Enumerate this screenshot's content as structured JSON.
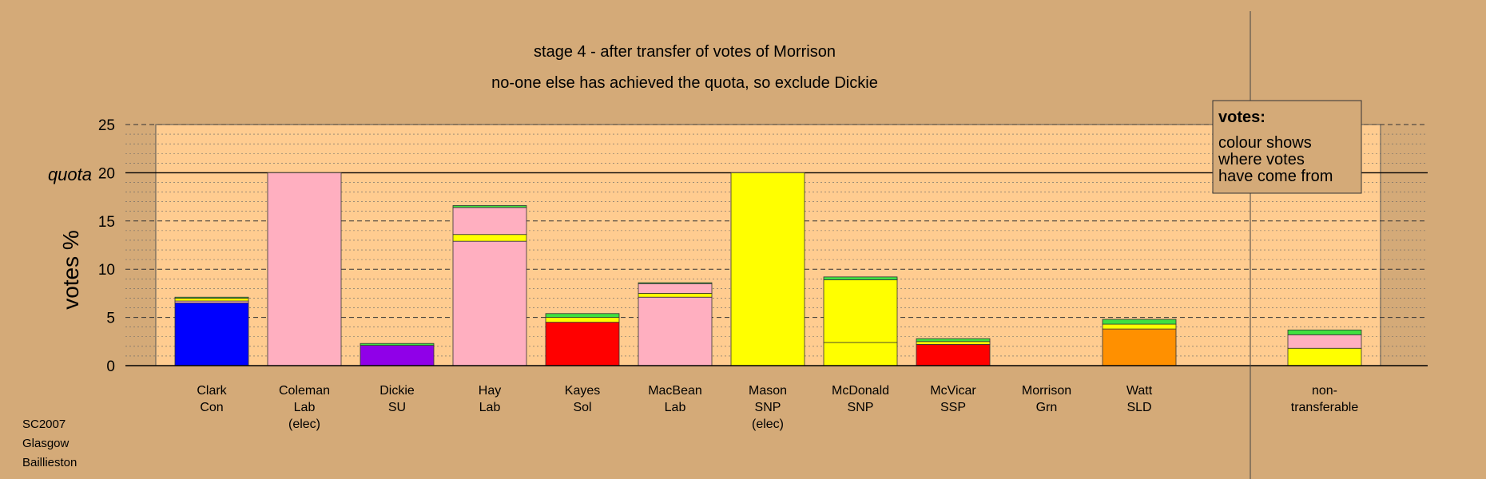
{
  "chart_data": {
    "type": "bar",
    "stacked": true,
    "title": "stage 4 - after transfer of votes of Morrison",
    "subtitle": "no-one else has achieved the quota, so exclude Dickie",
    "ylabel": "votes %",
    "ylim": [
      0,
      25
    ],
    "yticks": [
      0,
      5,
      10,
      15,
      20,
      25
    ],
    "quota": 20,
    "quota_label": "quota",
    "grid": true,
    "source_note": [
      "SC2007",
      "Glasgow",
      "Baillieston"
    ],
    "legend": {
      "title": "votes:",
      "lines": [
        "colour shows",
        "where votes",
        "have come from"
      ],
      "placement": "top-right"
    },
    "colors": {
      "background": "#d4aa78",
      "plot_area": "#ffcc90",
      "Con": "#0000ff",
      "Lab": "#ffafc0",
      "SU": "#9000e8",
      "Sol": "#ff0000",
      "SNP": "#ffff00",
      "SSP": "#ff0000",
      "Grn": "#40e040",
      "SLD": "#ff9000"
    },
    "categories": [
      {
        "name": "Clark",
        "party": "Con"
      },
      {
        "name": "Coleman",
        "party": "Lab",
        "note": "(elec)"
      },
      {
        "name": "Dickie",
        "party": "SU"
      },
      {
        "name": "Hay",
        "party": "Lab"
      },
      {
        "name": "Kayes",
        "party": "Sol"
      },
      {
        "name": "MacBean",
        "party": "Lab"
      },
      {
        "name": "Mason",
        "party": "SNP",
        "note": "(elec)"
      },
      {
        "name": "McDonald",
        "party": "SNP"
      },
      {
        "name": "McVicar",
        "party": "SSP"
      },
      {
        "name": "Morrison",
        "party": "Grn"
      },
      {
        "name": "Watt",
        "party": "SLD"
      },
      {
        "name": "non-",
        "party": "transferable"
      }
    ],
    "bars": [
      [
        {
          "source": "Con",
          "value": 6.5
        },
        {
          "source": "Lab",
          "value": 0.2
        },
        {
          "source": "SNP",
          "value": 0.3
        },
        {
          "source": "Grn",
          "value": 0.1
        }
      ],
      [
        {
          "source": "Lab",
          "value": 20.0
        }
      ],
      [
        {
          "source": "SU",
          "value": 2.1
        },
        {
          "source": "Grn",
          "value": 0.2
        }
      ],
      [
        {
          "source": "Lab",
          "value": 12.9
        },
        {
          "source": "SNP",
          "value": 0.7
        },
        {
          "source": "Lab",
          "value": 2.8
        },
        {
          "source": "Grn",
          "value": 0.2
        }
      ],
      [
        {
          "source": "Sol",
          "value": 4.5
        },
        {
          "source": "SNP",
          "value": 0.5
        },
        {
          "source": "Grn",
          "value": 0.4
        }
      ],
      [
        {
          "source": "Lab",
          "value": 7.1
        },
        {
          "source": "SNP",
          "value": 0.4
        },
        {
          "source": "Lab",
          "value": 1.0
        },
        {
          "source": "Grn",
          "value": 0.1
        }
      ],
      [
        {
          "source": "SNP",
          "value": 20.0
        }
      ],
      [
        {
          "source": "SNP",
          "value": 2.4
        },
        {
          "source": "SNP",
          "value": 6.5
        },
        {
          "source": "Grn",
          "value": 0.3
        }
      ],
      [
        {
          "source": "SSP",
          "value": 2.2
        },
        {
          "source": "SNP",
          "value": 0.3
        },
        {
          "source": "Grn",
          "value": 0.3
        }
      ],
      [],
      [
        {
          "source": "SLD",
          "value": 3.8
        },
        {
          "source": "SNP",
          "value": 0.5
        },
        {
          "source": "Grn",
          "value": 0.5
        }
      ],
      [
        {
          "source": "SNP",
          "value": 1.8
        },
        {
          "source": "Lab",
          "value": 1.4
        },
        {
          "source": "Grn",
          "value": 0.5
        }
      ]
    ]
  }
}
